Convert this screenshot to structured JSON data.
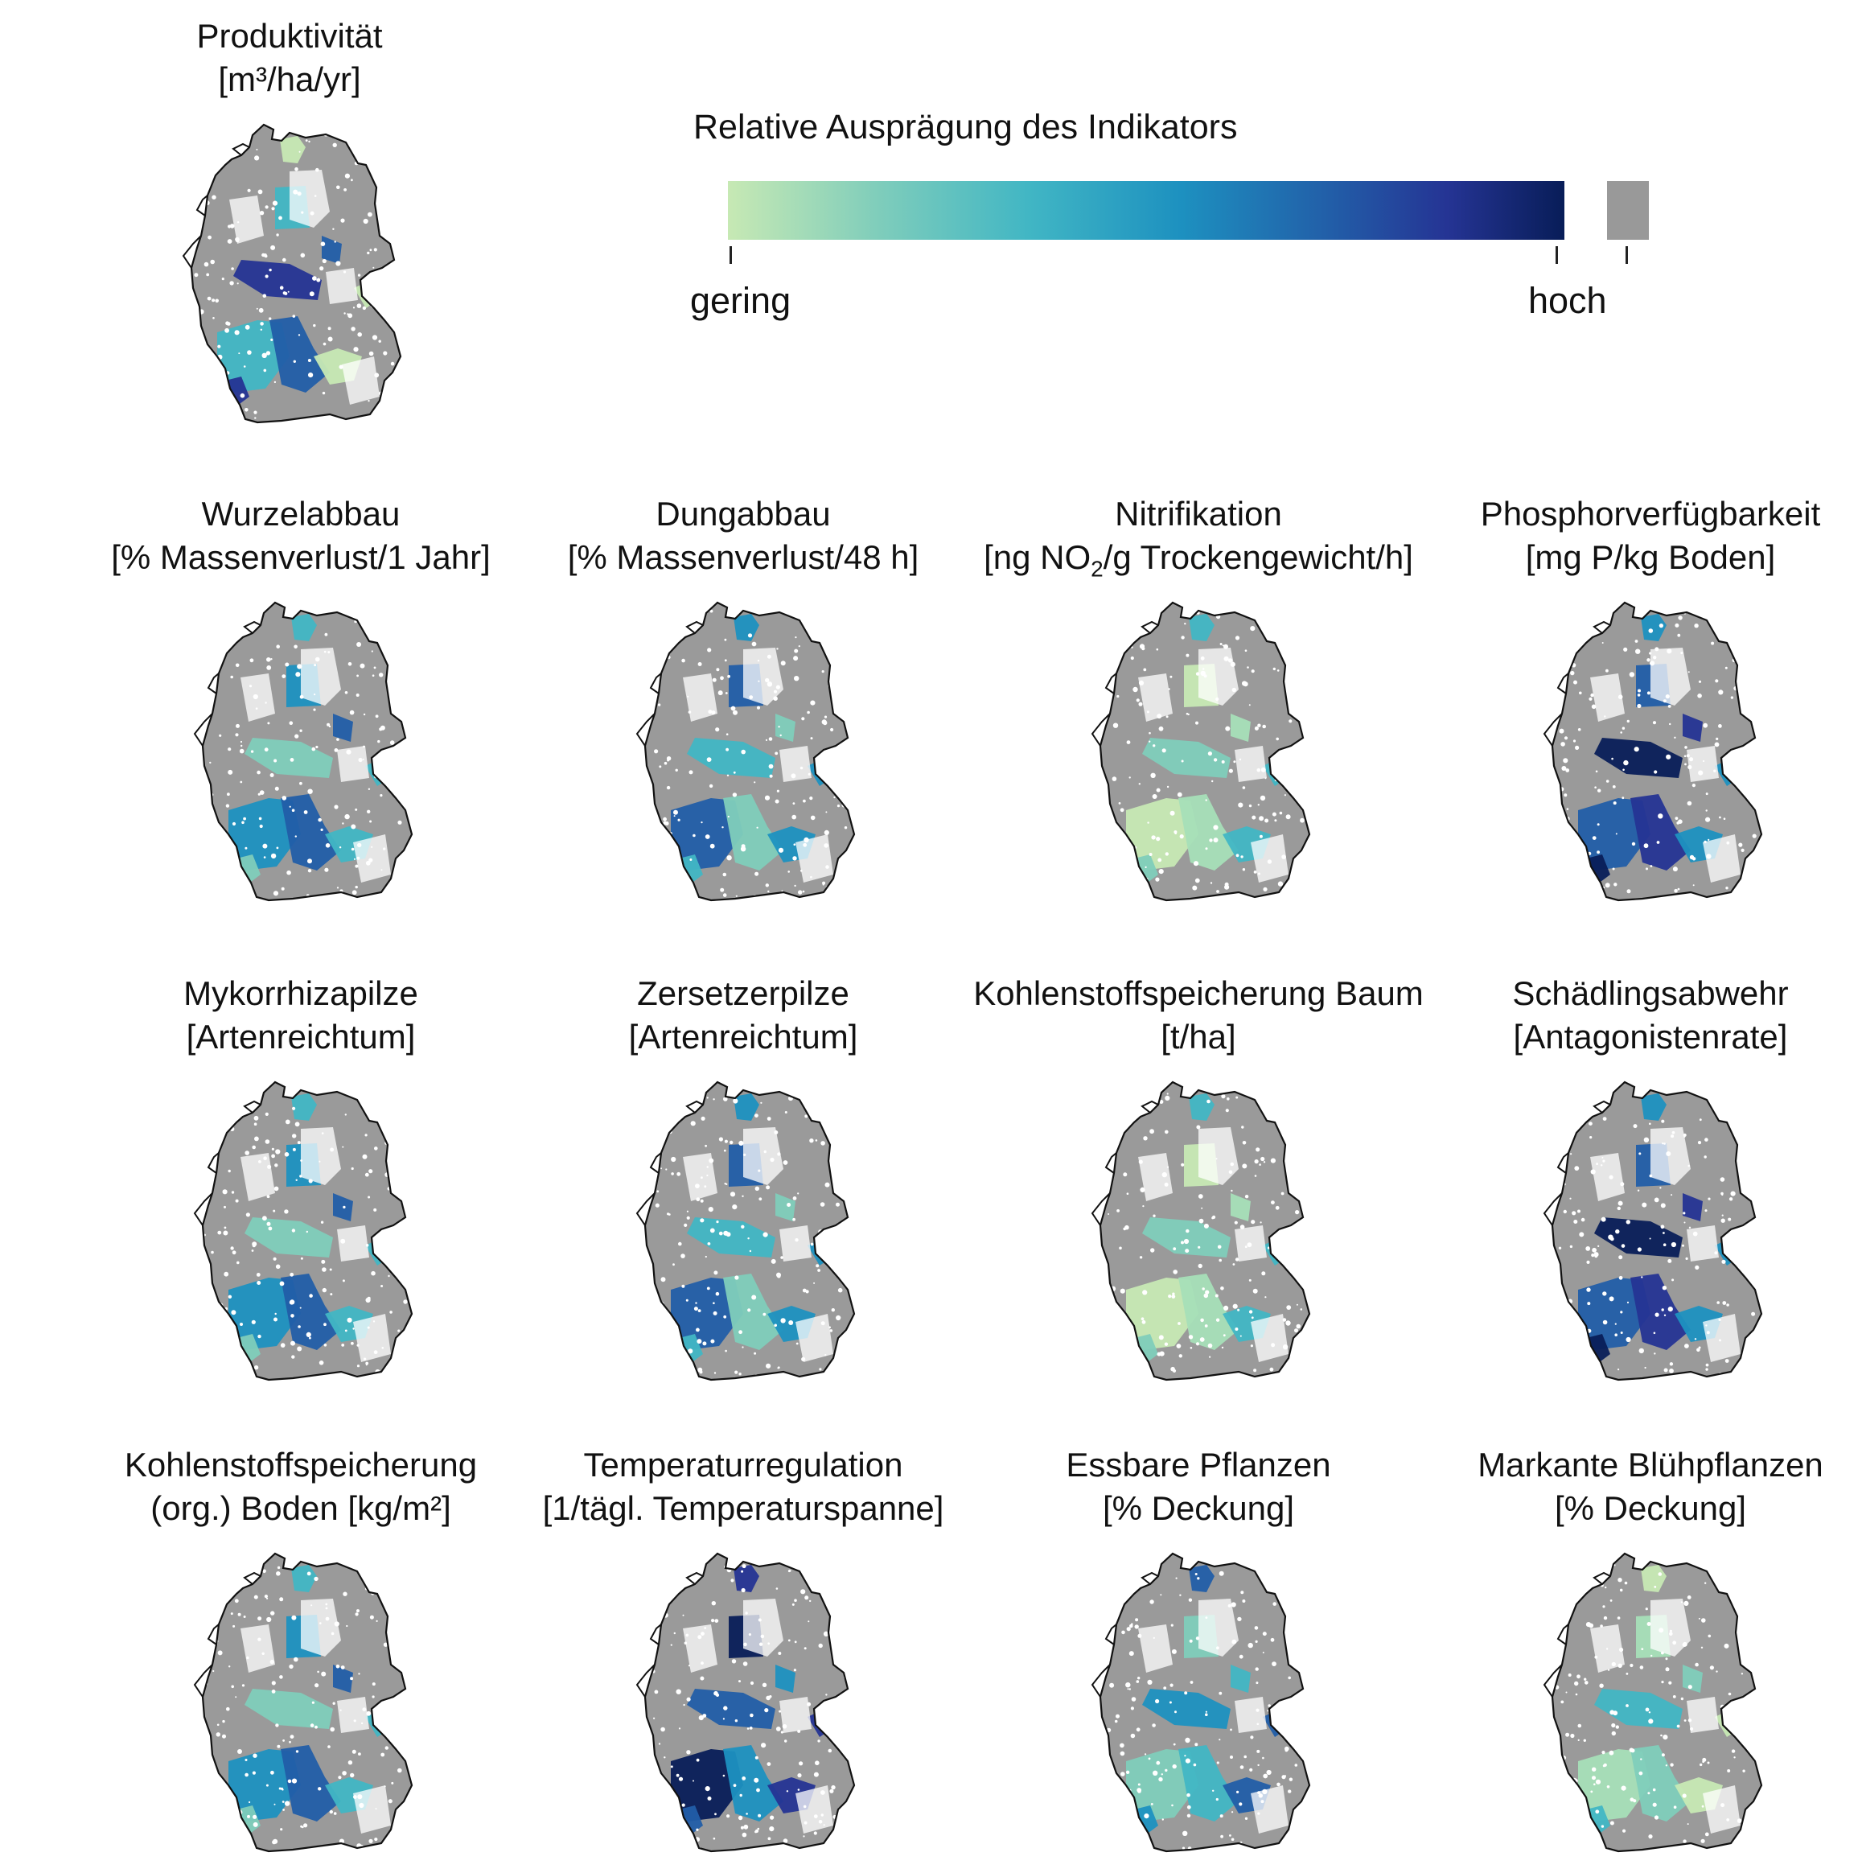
{
  "legend": {
    "title": "Relative Ausprägung des Indikators",
    "low_label": "gering",
    "high_label": "hoch",
    "gradient": [
      "#c7e9b4",
      "#7fcdbb",
      "#41b6c4",
      "#1d91c0",
      "#225ea8",
      "#253494",
      "#081d58"
    ],
    "na_color": "#999999"
  },
  "colors": {
    "map_gray": "#9a9a9a",
    "outline": "#111111"
  },
  "panels": [
    {
      "line1": "Produktivität",
      "line2": "[m³/ha/yr]",
      "level": "mixed"
    },
    {
      "line1": "Wurzelabbau",
      "line2": "[% Massenverlust/1 Jahr]",
      "level": "mid"
    },
    {
      "line1": "Dungabbau",
      "line2": "[% Massenverlust/48 h]",
      "level": "mid"
    },
    {
      "line1": "Nitrifikation",
      "line2_pre": "[ng NO",
      "line2_sub": "2",
      "line2_post": "/g Trockengewicht/h]",
      "level": "low"
    },
    {
      "line1": "Phosphorverfügbarkeit",
      "line2": "[mg P/kg Boden]",
      "level": "high"
    },
    {
      "line1": "Mykorrhizapilze",
      "line2": "[Artenreichtum]",
      "level": "mid"
    },
    {
      "line1": "Zersetzerpilze",
      "line2": "[Artenreichtum]",
      "level": "mid"
    },
    {
      "line1": "Kohlenstoffspeicherung Baum",
      "line2": "[t/ha]",
      "level": "low"
    },
    {
      "line1": "Schädlingsabwehr",
      "line2": "[Antagonistenrate]",
      "level": "high"
    },
    {
      "line1": "Kohlenstoffspeicherung",
      "line2": "(org.) Boden [kg/m²]",
      "level": "mid"
    },
    {
      "line1": "Temperaturregulation",
      "line2": "[1/tägl. Temperaturspanne]",
      "level": "high"
    },
    {
      "line1": "Essbare Pflanzen",
      "line2": "[% Deckung]",
      "level": "mid"
    },
    {
      "line1": "Markante Blühpflanzen",
      "line2": "[% Deckung]",
      "level": "low"
    }
  ]
}
